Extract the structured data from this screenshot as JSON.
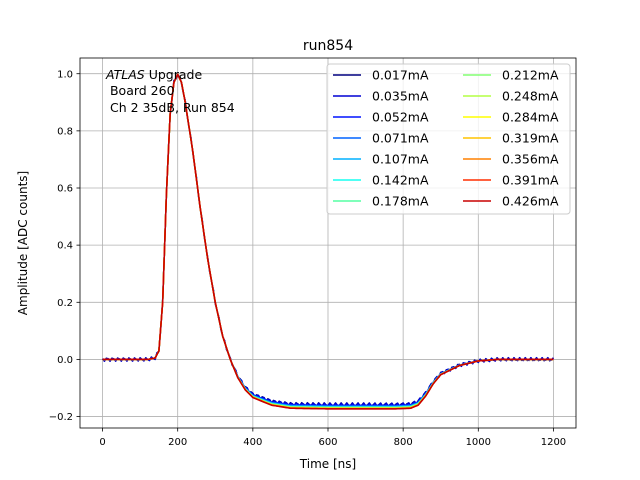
{
  "chart_data": {
    "type": "line",
    "title": "run854",
    "xlabel": "Time [ns]",
    "ylabel": "Amplitude [ADC counts]",
    "xlim": [
      -60,
      1260
    ],
    "ylim": [
      -0.24,
      1.055
    ],
    "xticks": [
      0,
      200,
      400,
      600,
      800,
      1000,
      1200
    ],
    "yticks": [
      -0.2,
      0.0,
      0.2,
      0.4,
      0.6,
      0.8,
      1.0
    ],
    "xtick_labels": [
      "0",
      "200",
      "400",
      "600",
      "800",
      "1000",
      "1200"
    ],
    "ytick_labels": [
      "−0.2",
      "0.0",
      "0.2",
      "0.4",
      "0.6",
      "0.8",
      "1.0"
    ],
    "grid": true,
    "legend_position": "top-right",
    "legend_columns": 2,
    "annotation": {
      "italic": "ATLAS",
      "line1_rest": " Upgrade",
      "line2": " Board 260",
      "line3": " Ch 2 35dB, Run 854"
    },
    "pulse_shape": {
      "x": [
        0,
        120,
        140,
        150,
        160,
        170,
        180,
        190,
        200,
        210,
        220,
        240,
        260,
        280,
        300,
        320,
        340,
        360,
        380,
        400,
        450,
        500,
        600,
        700,
        780,
        820,
        840,
        860,
        880,
        900,
        950,
        1000,
        1050,
        1100,
        1200
      ],
      "y": [
        0.0,
        0.0,
        0.005,
        0.03,
        0.2,
        0.58,
        0.86,
        0.97,
        0.998,
        0.97,
        0.9,
        0.73,
        0.53,
        0.35,
        0.2,
        0.08,
        0.0,
        -0.06,
        -0.1,
        -0.125,
        -0.15,
        -0.16,
        -0.162,
        -0.162,
        -0.162,
        -0.16,
        -0.15,
        -0.12,
        -0.08,
        -0.05,
        -0.02,
        -0.005,
        0.0,
        0.0,
        0.0
      ]
    },
    "series": [
      {
        "name": "0.017mA",
        "color": "#00007f",
        "undershoot": -0.158
      },
      {
        "name": "0.035mA",
        "color": "#0000d4",
        "undershoot": -0.159
      },
      {
        "name": "0.052mA",
        "color": "#0014ff",
        "undershoot": -0.161
      },
      {
        "name": "0.071mA",
        "color": "#0064ff",
        "undershoot": -0.163
      },
      {
        "name": "0.107mA",
        "color": "#00b0ff",
        "undershoot": -0.165
      },
      {
        "name": "0.142mA",
        "color": "#17fff1",
        "undershoot": -0.167
      },
      {
        "name": "0.178mA",
        "color": "#55ffa3",
        "undershoot": -0.168
      },
      {
        "name": "0.212mA",
        "color": "#83ff73",
        "undershoot": -0.169
      },
      {
        "name": "0.248mA",
        "color": "#b3ff43",
        "undershoot": -0.17
      },
      {
        "name": "0.284mA",
        "color": "#ffff00",
        "undershoot": -0.171
      },
      {
        "name": "0.319mA",
        "color": "#ffc400",
        "undershoot": -0.172
      },
      {
        "name": "0.356mA",
        "color": "#ff8100",
        "undershoot": -0.172
      },
      {
        "name": "0.391mA",
        "color": "#ff2f00",
        "undershoot": -0.173
      },
      {
        "name": "0.426mA",
        "color": "#c80000",
        "undershoot": -0.173
      }
    ]
  }
}
